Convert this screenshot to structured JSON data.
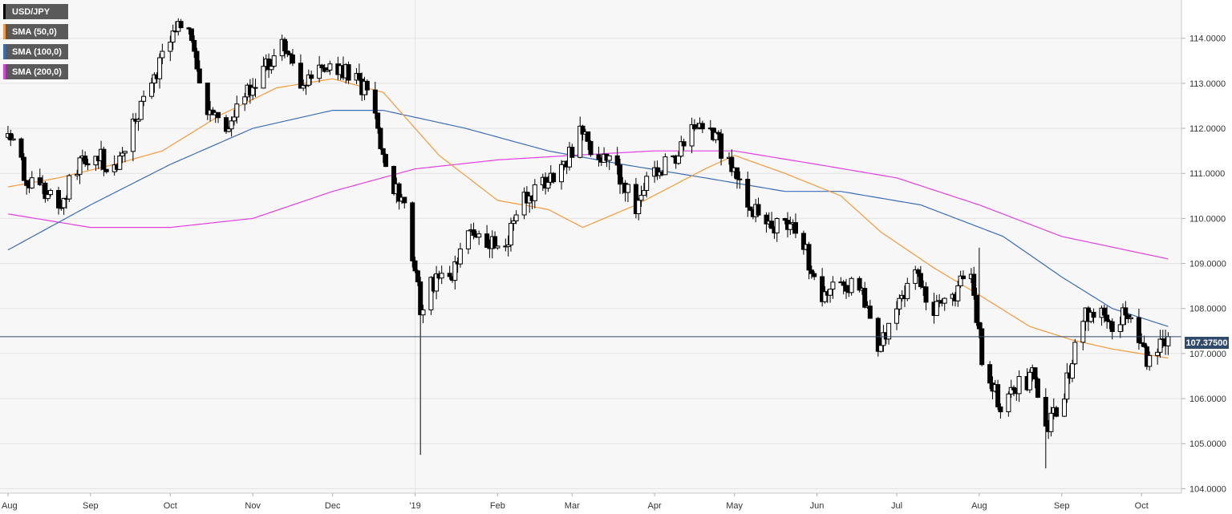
{
  "chart_data": {
    "type": "candlestick",
    "instrument": "USD/JPY",
    "legend": [
      {
        "label": "USD/JPY",
        "color": "#000000"
      },
      {
        "label": "SMA (50,0)",
        "color": "#f59a3a"
      },
      {
        "label": "SMA (100,0)",
        "color": "#3a6db5"
      },
      {
        "label": "SMA (200,0)",
        "color": "#e23fe0"
      }
    ],
    "x_tick_labels": [
      "Aug",
      "Sep",
      "Oct",
      "Nov",
      "Dec",
      "'19",
      "Feb",
      "Mar",
      "Apr",
      "May",
      "Jun",
      "Jul",
      "Aug",
      "Sep",
      "Oct"
    ],
    "y_tick_labels": [
      "114.0000",
      "113.0000",
      "112.0000",
      "111.0000",
      "110.0000",
      "109.0000",
      "108.0000",
      "107.0000",
      "106.0000",
      "105.0000",
      "104.0000"
    ],
    "ylim": [
      103.9,
      114.85
    ],
    "current_price": 107.375,
    "current_price_label": "107.37500",
    "grid": true,
    "legend_position": "top-left",
    "price_path": [
      [
        "2018-08-01",
        111.8
      ],
      [
        "2018-08-08",
        110.9
      ],
      [
        "2018-08-14",
        110.7
      ],
      [
        "2018-08-20",
        110.1
      ],
      [
        "2018-08-27",
        111.2
      ],
      [
        "2018-09-04",
        111.4
      ],
      [
        "2018-09-10",
        111.1
      ],
      [
        "2018-09-17",
        112.0
      ],
      [
        "2018-09-24",
        112.9
      ],
      [
        "2018-10-01",
        114.0
      ],
      [
        "2018-10-04",
        114.5
      ],
      [
        "2018-10-10",
        113.8
      ],
      [
        "2018-10-15",
        112.3
      ],
      [
        "2018-10-22",
        112.0
      ],
      [
        "2018-10-29",
        112.7
      ],
      [
        "2018-11-05",
        113.3
      ],
      [
        "2018-11-12",
        113.9
      ],
      [
        "2018-11-19",
        112.8
      ],
      [
        "2018-11-26",
        113.5
      ],
      [
        "2018-12-03",
        113.4
      ],
      [
        "2018-12-10",
        113.1
      ],
      [
        "2018-12-17",
        112.5
      ],
      [
        "2018-12-21",
        111.0
      ],
      [
        "2018-12-28",
        110.3
      ],
      [
        "2019-01-03",
        108.0
      ],
      [
        "2019-01-07",
        108.6
      ],
      [
        "2019-01-14",
        108.6
      ],
      [
        "2019-01-21",
        109.6
      ],
      [
        "2019-01-28",
        109.4
      ],
      [
        "2019-02-04",
        109.4
      ],
      [
        "2019-02-11",
        110.4
      ],
      [
        "2019-02-18",
        110.7
      ],
      [
        "2019-02-25",
        111.0
      ],
      [
        "2019-03-04",
        111.9
      ],
      [
        "2019-03-11",
        111.4
      ],
      [
        "2019-03-18",
        111.0
      ],
      [
        "2019-03-25",
        110.2
      ],
      [
        "2019-04-01",
        111.1
      ],
      [
        "2019-04-08",
        111.3
      ],
      [
        "2019-04-15",
        111.9
      ],
      [
        "2019-04-22",
        112.0
      ],
      [
        "2019-04-29",
        111.2
      ],
      [
        "2019-05-06",
        110.4
      ],
      [
        "2019-05-13",
        109.7
      ],
      [
        "2019-05-20",
        109.9
      ],
      [
        "2019-05-27",
        109.4
      ],
      [
        "2019-06-03",
        108.2
      ],
      [
        "2019-06-10",
        108.5
      ],
      [
        "2019-06-17",
        108.4
      ],
      [
        "2019-06-24",
        107.2
      ],
      [
        "2019-07-01",
        107.9
      ],
      [
        "2019-07-08",
        108.7
      ],
      [
        "2019-07-15",
        107.9
      ],
      [
        "2019-07-22",
        108.3
      ],
      [
        "2019-07-29",
        108.8
      ],
      [
        "2019-08-02",
        106.9
      ],
      [
        "2019-08-09",
        105.8
      ],
      [
        "2019-08-15",
        106.3
      ],
      [
        "2019-08-22",
        106.5
      ],
      [
        "2019-08-26",
        105.2
      ],
      [
        "2019-09-02",
        106.2
      ],
      [
        "2019-09-09",
        107.8
      ],
      [
        "2019-09-16",
        108.1
      ],
      [
        "2019-09-20",
        107.7
      ],
      [
        "2019-09-27",
        107.9
      ],
      [
        "2019-10-03",
        106.9
      ],
      [
        "2019-10-08",
        107.2
      ],
      [
        "2019-10-11",
        107.375
      ]
    ],
    "extreme_wicks": [
      {
        "date": "2019-01-03",
        "low": 104.75
      },
      {
        "date": "2019-08-26",
        "low": 104.45
      },
      {
        "date": "2019-08-01",
        "high": 109.35
      }
    ],
    "sma_50": [
      [
        "2018-08-01",
        110.7
      ],
      [
        "2018-08-20",
        110.9
      ],
      [
        "2018-09-10",
        111.2
      ],
      [
        "2018-09-28",
        111.5
      ],
      [
        "2018-10-20",
        112.3
      ],
      [
        "2018-11-10",
        112.9
      ],
      [
        "2018-12-01",
        113.1
      ],
      [
        "2018-12-20",
        112.8
      ],
      [
        "2019-01-10",
        111.4
      ],
      [
        "2019-02-01",
        110.4
      ],
      [
        "2019-02-20",
        110.2
      ],
      [
        "2019-03-05",
        109.8
      ],
      [
        "2019-03-25",
        110.3
      ],
      [
        "2019-04-20",
        111.1
      ],
      [
        "2019-05-01",
        111.4
      ],
      [
        "2019-05-20",
        111.0
      ],
      [
        "2019-06-10",
        110.5
      ],
      [
        "2019-06-25",
        109.7
      ],
      [
        "2019-07-15",
        108.9
      ],
      [
        "2019-08-01",
        108.3
      ],
      [
        "2019-08-20",
        107.6
      ],
      [
        "2019-09-05",
        107.3
      ],
      [
        "2019-09-20",
        107.1
      ],
      [
        "2019-10-11",
        106.9
      ]
    ],
    "sma_100": [
      [
        "2018-08-01",
        109.3
      ],
      [
        "2018-09-01",
        110.3
      ],
      [
        "2018-10-01",
        111.2
      ],
      [
        "2018-11-01",
        112.0
      ],
      [
        "2018-12-01",
        112.4
      ],
      [
        "2018-12-20",
        112.4
      ],
      [
        "2019-01-20",
        112.0
      ],
      [
        "2019-02-20",
        111.5
      ],
      [
        "2019-03-20",
        111.2
      ],
      [
        "2019-04-20",
        110.9
      ],
      [
        "2019-05-20",
        110.6
      ],
      [
        "2019-06-10",
        110.6
      ],
      [
        "2019-07-10",
        110.3
      ],
      [
        "2019-08-10",
        109.6
      ],
      [
        "2019-09-01",
        108.7
      ],
      [
        "2019-09-20",
        108.0
      ],
      [
        "2019-10-11",
        107.6
      ]
    ],
    "sma_200": [
      [
        "2018-08-01",
        110.1
      ],
      [
        "2018-09-01",
        109.8
      ],
      [
        "2018-10-01",
        109.8
      ],
      [
        "2018-11-01",
        110.0
      ],
      [
        "2018-12-01",
        110.6
      ],
      [
        "2019-01-01",
        111.1
      ],
      [
        "2019-02-01",
        111.3
      ],
      [
        "2019-03-01",
        111.4
      ],
      [
        "2019-04-01",
        111.5
      ],
      [
        "2019-05-01",
        111.5
      ],
      [
        "2019-06-01",
        111.2
      ],
      [
        "2019-07-01",
        110.9
      ],
      [
        "2019-08-01",
        110.3
      ],
      [
        "2019-09-01",
        109.6
      ],
      [
        "2019-10-11",
        109.1
      ]
    ]
  }
}
